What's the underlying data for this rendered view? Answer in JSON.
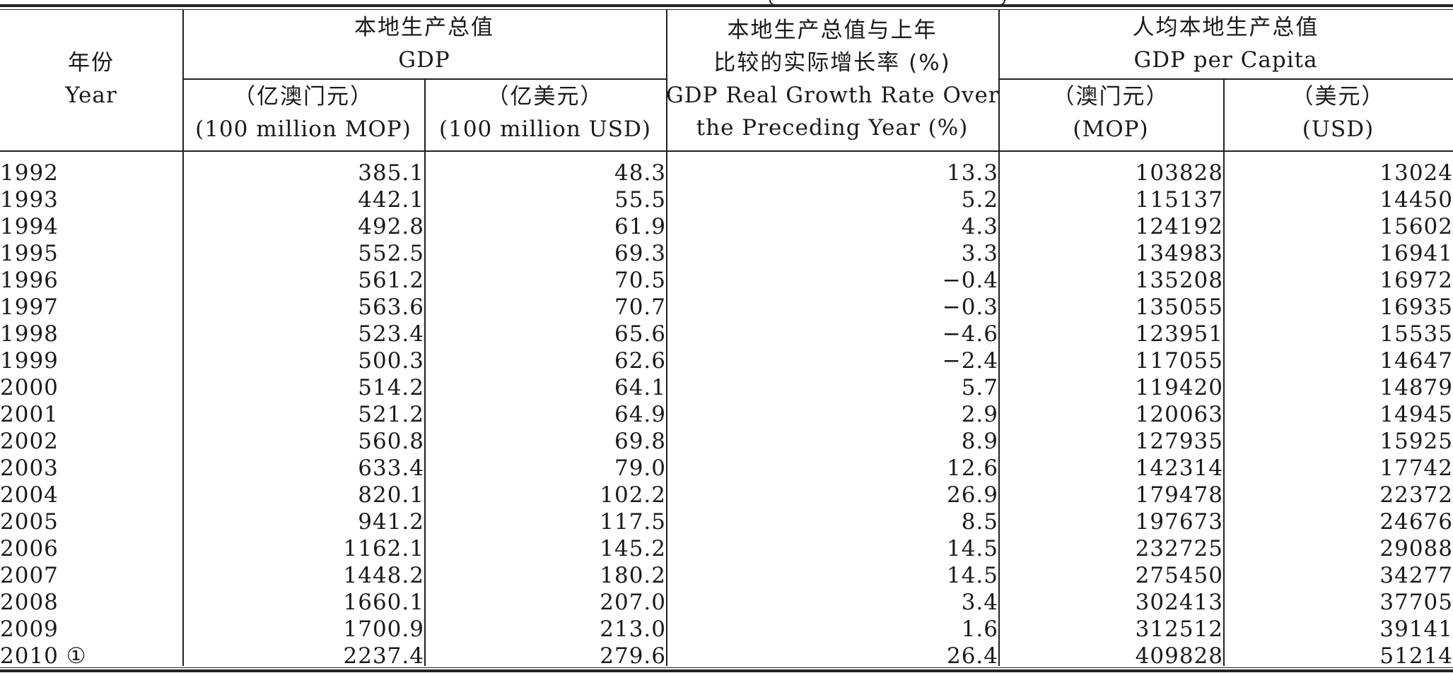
{
  "table": {
    "headers": {
      "year": {
        "cn": "年份",
        "en": "Year"
      },
      "gdp": {
        "cn": "本地生产总值",
        "en": "GDP",
        "sub_mop_cn": "（亿澳门元）",
        "sub_mop_en": "(100 million MOP)",
        "sub_usd_cn": "（亿美元）",
        "sub_usd_en": "(100 million USD)"
      },
      "growth": {
        "cn_line1": "本地生产总值与上年",
        "cn_line2": "比较的实际增长率 (%)",
        "en_line1": "GDP Real Growth Rate Over",
        "en_line2": "the Preceding Year (%)"
      },
      "per_capita": {
        "cn": "人均本地生产总值",
        "en": "GDP per Capita",
        "sub_mop_cn": "（澳门元）",
        "sub_mop_en": "(MOP)",
        "sub_usd_cn": "（美元）",
        "sub_usd_en": "(USD)"
      }
    },
    "rows": [
      {
        "year": "1992",
        "gdp_mop": "385.1",
        "gdp_usd": "48.3",
        "growth": "13.3",
        "pc_mop": "103828",
        "pc_usd": "13024"
      },
      {
        "year": "1993",
        "gdp_mop": "442.1",
        "gdp_usd": "55.5",
        "growth": "5.2",
        "pc_mop": "115137",
        "pc_usd": "14450"
      },
      {
        "year": "1994",
        "gdp_mop": "492.8",
        "gdp_usd": "61.9",
        "growth": "4.3",
        "pc_mop": "124192",
        "pc_usd": "15602"
      },
      {
        "year": "1995",
        "gdp_mop": "552.5",
        "gdp_usd": "69.3",
        "growth": "3.3",
        "pc_mop": "134983",
        "pc_usd": "16941"
      },
      {
        "year": "1996",
        "gdp_mop": "561.2",
        "gdp_usd": "70.5",
        "growth": "−0.4",
        "pc_mop": "135208",
        "pc_usd": "16972"
      },
      {
        "year": "1997",
        "gdp_mop": "563.6",
        "gdp_usd": "70.7",
        "growth": "−0.3",
        "pc_mop": "135055",
        "pc_usd": "16935"
      },
      {
        "year": "1998",
        "gdp_mop": "523.4",
        "gdp_usd": "65.6",
        "growth": "−4.6",
        "pc_mop": "123951",
        "pc_usd": "15535"
      },
      {
        "year": "1999",
        "gdp_mop": "500.3",
        "gdp_usd": "62.6",
        "growth": "−2.4",
        "pc_mop": "117055",
        "pc_usd": "14647"
      },
      {
        "year": "2000",
        "gdp_mop": "514.2",
        "gdp_usd": "64.1",
        "growth": "5.7",
        "pc_mop": "119420",
        "pc_usd": "14879"
      },
      {
        "year": "2001",
        "gdp_mop": "521.2",
        "gdp_usd": "64.9",
        "growth": "2.9",
        "pc_mop": "120063",
        "pc_usd": "14945"
      },
      {
        "year": "2002",
        "gdp_mop": "560.8",
        "gdp_usd": "69.8",
        "growth": "8.9",
        "pc_mop": "127935",
        "pc_usd": "15925"
      },
      {
        "year": "2003",
        "gdp_mop": "633.4",
        "gdp_usd": "79.0",
        "growth": "12.6",
        "pc_mop": "142314",
        "pc_usd": "17742"
      },
      {
        "year": "2004",
        "gdp_mop": "820.1",
        "gdp_usd": "102.2",
        "growth": "26.9",
        "pc_mop": "179478",
        "pc_usd": "22372"
      },
      {
        "year": "2005",
        "gdp_mop": "941.2",
        "gdp_usd": "117.5",
        "growth": "8.5",
        "pc_mop": "197673",
        "pc_usd": "24676"
      },
      {
        "year": "2006",
        "gdp_mop": "1162.1",
        "gdp_usd": "145.2",
        "growth": "14.5",
        "pc_mop": "232725",
        "pc_usd": "29088"
      },
      {
        "year": "2007",
        "gdp_mop": "1448.2",
        "gdp_usd": "180.2",
        "growth": "14.5",
        "pc_mop": "275450",
        "pc_usd": "34277"
      },
      {
        "year": "2008",
        "gdp_mop": "1660.1",
        "gdp_usd": "207.0",
        "growth": "3.4",
        "pc_mop": "302413",
        "pc_usd": "37705"
      },
      {
        "year": "2009",
        "gdp_mop": "1700.9",
        "gdp_usd": "213.0",
        "growth": "1.6",
        "pc_mop": "312512",
        "pc_usd": "39141"
      },
      {
        "year": "2010 ①",
        "gdp_mop": "2237.4",
        "gdp_usd": "279.6",
        "growth": "26.4",
        "pc_mop": "409828",
        "pc_usd": "51214"
      }
    ]
  }
}
